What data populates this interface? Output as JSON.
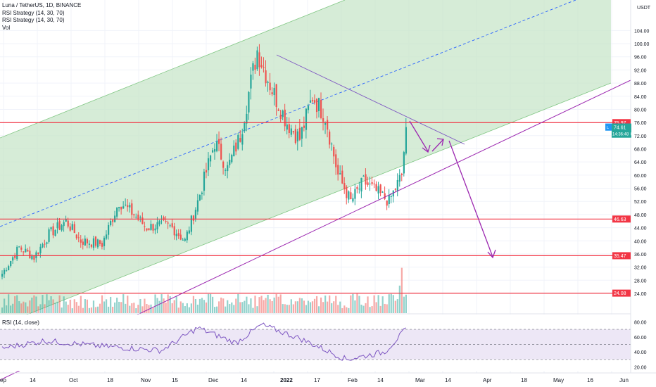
{
  "header": {
    "symbol_line": "Luna / TetherUS, 1D, BINANCE",
    "indicator_1": "RSI Strategy (14, 30, 70)",
    "indicator_2": "RSI Strategy (14, 30, 70)",
    "indicator_3": "Vol"
  },
  "currency": "USDT",
  "rsi_label": "RSI (14, close)",
  "price_axis_ticks": [
    "104.00",
    "100.00",
    "96.00",
    "92.00",
    "88.00",
    "84.00",
    "80.00",
    "76.00",
    "72.00",
    "68.00",
    "64.00",
    "60.00",
    "56.00",
    "52.00",
    "48.00",
    "44.00",
    "40.00",
    "36.00",
    "32.00",
    "28.00",
    "24.00"
  ],
  "rsi_axis_ticks": [
    "80.00",
    "60.00",
    "40.00",
    "20.00"
  ],
  "time_axis": [
    "ep",
    "14",
    "Oct",
    "18",
    "Nov",
    "15",
    "Dec",
    "14",
    "2022",
    "17",
    "Feb",
    "14",
    "Mar",
    "14",
    "Apr",
    "18",
    "May",
    "16",
    "Jun"
  ],
  "price_labels": {
    "resistance": "75.97",
    "last": "74.61",
    "countdown": "14:36:48",
    "symbol": "LUNAUSDT",
    "support_1": "46.63",
    "support_2": "35.47",
    "support_3": "24.08"
  },
  "colors": {
    "up": "#26a69a",
    "down": "#ef5350",
    "channel_fill": "#c8e6c9",
    "horizontal_level": "#f23645",
    "trendline": "#9c27b0",
    "midline": "#2962ff",
    "label_blue": "#2196f3"
  },
  "chart_data": {
    "type": "candlestick",
    "title": "Luna / TetherUS, 1D, BINANCE",
    "y_range": [
      18,
      112
    ],
    "horizontal_levels": [
      75.97,
      46.63,
      35.47,
      24.08
    ],
    "last_price": 74.61,
    "anchor_closes": [
      {
        "index": 0,
        "close": 30
      },
      {
        "index": 8,
        "close": 38
      },
      {
        "index": 15,
        "close": 35
      },
      {
        "index": 22,
        "close": 42
      },
      {
        "index": 30,
        "close": 46
      },
      {
        "index": 37,
        "close": 40
      },
      {
        "index": 47,
        "close": 39
      },
      {
        "index": 55,
        "close": 52
      },
      {
        "index": 62,
        "close": 48
      },
      {
        "index": 68,
        "close": 44
      },
      {
        "index": 75,
        "close": 45
      },
      {
        "index": 80,
        "close": 44
      },
      {
        "index": 86,
        "close": 40
      },
      {
        "index": 92,
        "close": 52
      },
      {
        "index": 100,
        "close": 70
      },
      {
        "index": 106,
        "close": 62
      },
      {
        "index": 112,
        "close": 72
      },
      {
        "index": 120,
        "close": 98
      },
      {
        "index": 127,
        "close": 86
      },
      {
        "index": 134,
        "close": 76
      },
      {
        "index": 140,
        "close": 71
      },
      {
        "index": 146,
        "close": 84
      },
      {
        "index": 152,
        "close": 78
      },
      {
        "index": 158,
        "close": 60
      },
      {
        "index": 164,
        "close": 52
      },
      {
        "index": 170,
        "close": 58
      },
      {
        "index": 176,
        "close": 55
      },
      {
        "index": 182,
        "close": 52
      },
      {
        "index": 188,
        "close": 60
      },
      {
        "index": 190,
        "close": 74.61
      }
    ],
    "rsi": {
      "range": [
        15,
        85
      ],
      "overbought": 70,
      "oversold": 30,
      "anchors": [
        {
          "index": 0,
          "value": 45
        },
        {
          "index": 20,
          "value": 55
        },
        {
          "index": 45,
          "value": 48
        },
        {
          "index": 75,
          "value": 42
        },
        {
          "index": 92,
          "value": 72
        },
        {
          "index": 110,
          "value": 52
        },
        {
          "index": 122,
          "value": 76
        },
        {
          "index": 140,
          "value": 58
        },
        {
          "index": 162,
          "value": 30
        },
        {
          "index": 180,
          "value": 40
        },
        {
          "index": 190,
          "value": 70
        }
      ]
    },
    "volume": {
      "spikes": [
        {
          "index": 188,
          "value": 2.8
        },
        {
          "index": 187,
          "value": 1.7
        }
      ]
    }
  }
}
